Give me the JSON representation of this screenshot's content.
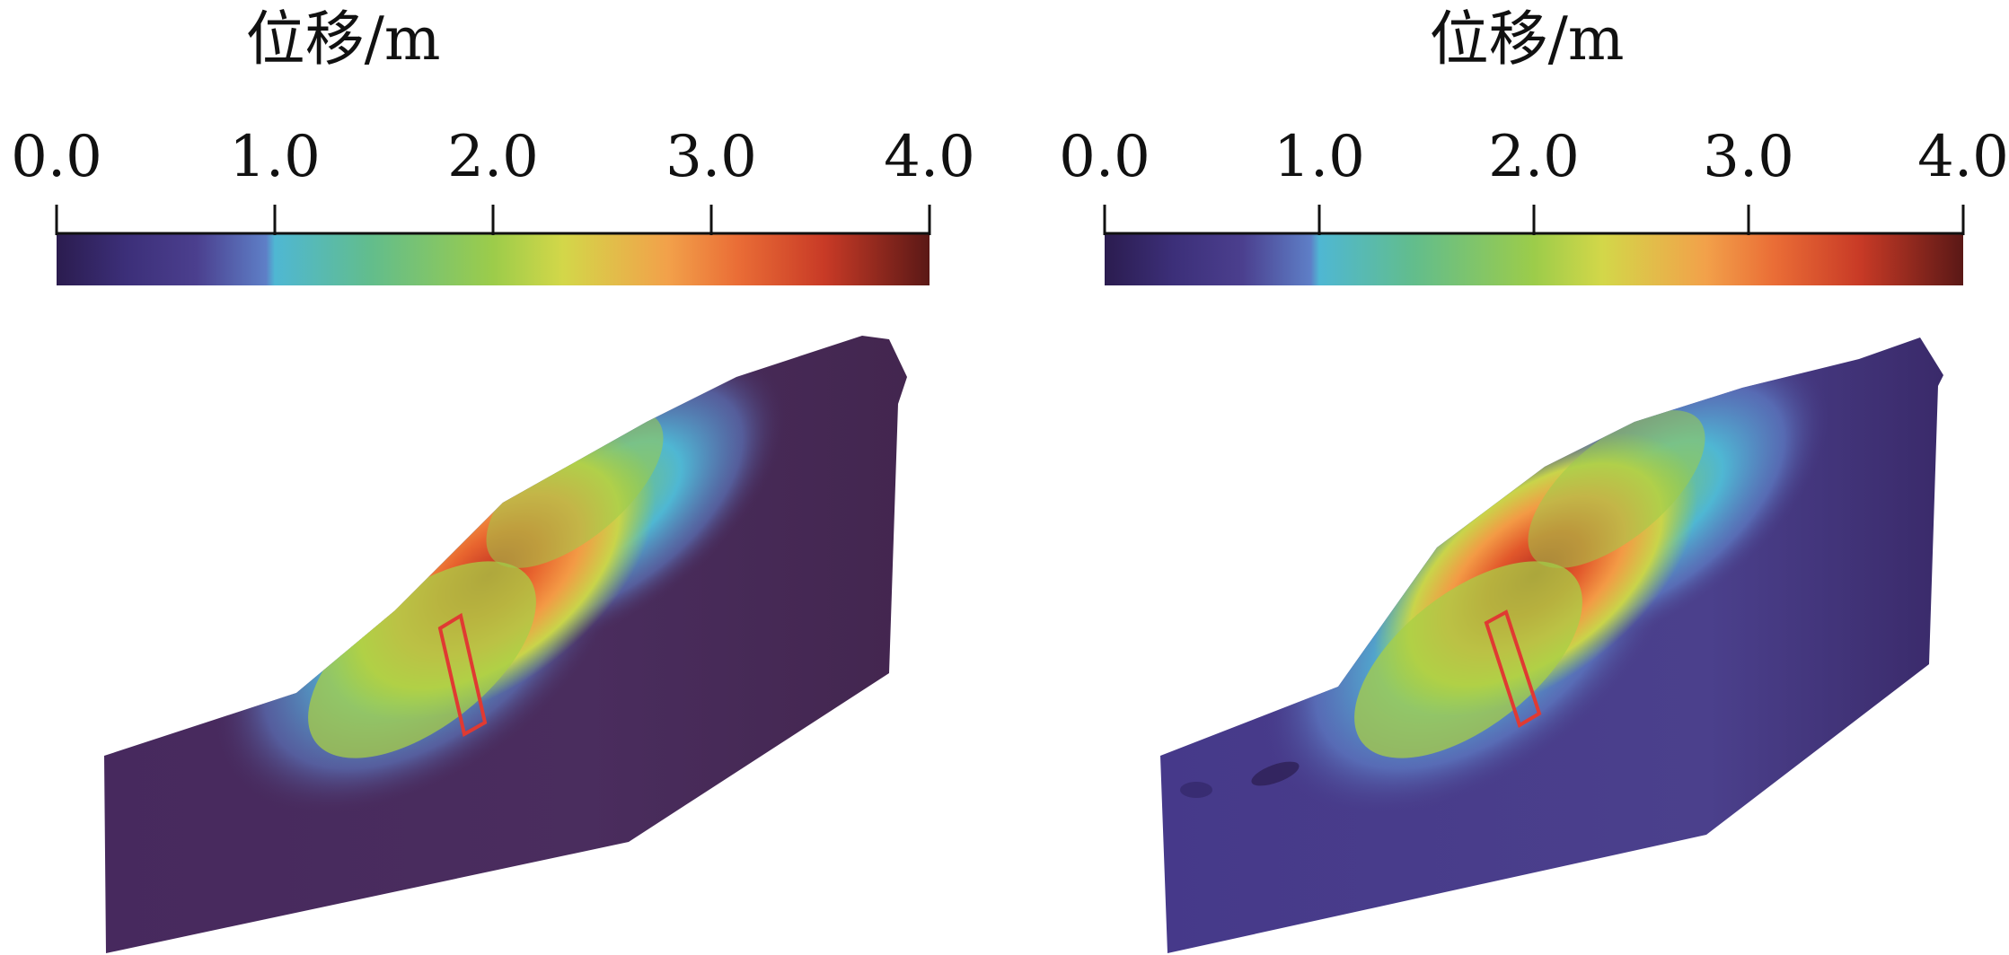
{
  "panels": [
    {
      "id": "left",
      "colorbar": {
        "title": "位移/m",
        "ticks": [
          {
            "label": "0.0",
            "value": 0.0
          },
          {
            "label": "1.0",
            "value": 1.0
          },
          {
            "label": "2.0",
            "value": 2.0
          },
          {
            "label": "3.0",
            "value": 3.0
          },
          {
            "label": "4.0",
            "value": 4.0
          }
        ],
        "range": [
          0.0,
          4.0
        ]
      },
      "model": {
        "colormap": "turbo-like (deep purple → blue → cyan → green → yellow → orange → dark red)",
        "background_displacement_level": 0.2,
        "peak_displacement_level": 3.3,
        "marker": "red-rectangle"
      }
    },
    {
      "id": "right",
      "colorbar": {
        "title": "位移/m",
        "ticks": [
          {
            "label": "0.0",
            "value": 0.0
          },
          {
            "label": "1.0",
            "value": 1.0
          },
          {
            "label": "2.0",
            "value": 2.0
          },
          {
            "label": "3.0",
            "value": 3.0
          },
          {
            "label": "4.0",
            "value": 4.0
          }
        ],
        "range": [
          0.0,
          4.0
        ]
      },
      "model": {
        "colormap": "turbo-like (deep purple → blue → cyan → green → yellow → orange → dark red)",
        "background_displacement_level": 0.35,
        "peak_displacement_level": 3.4,
        "marker": "red-rectangle"
      }
    }
  ],
  "colors": {
    "stop_0": "#2b1c4f",
    "stop_1": "#4b3f8e",
    "stop_2": "#5e7fc7",
    "stop_3": "#4fb7d3",
    "stop_4": "#62bd8c",
    "stop_5": "#9ccc4a",
    "stop_6": "#d3d749",
    "stop_7": "#f2a14a",
    "stop_8": "#ea6d36",
    "stop_9": "#c83a26",
    "stop_10": "#5a1816",
    "marker": "#e03a32",
    "left_body": "#4a2b5c",
    "right_body": "#4a3f8a"
  }
}
